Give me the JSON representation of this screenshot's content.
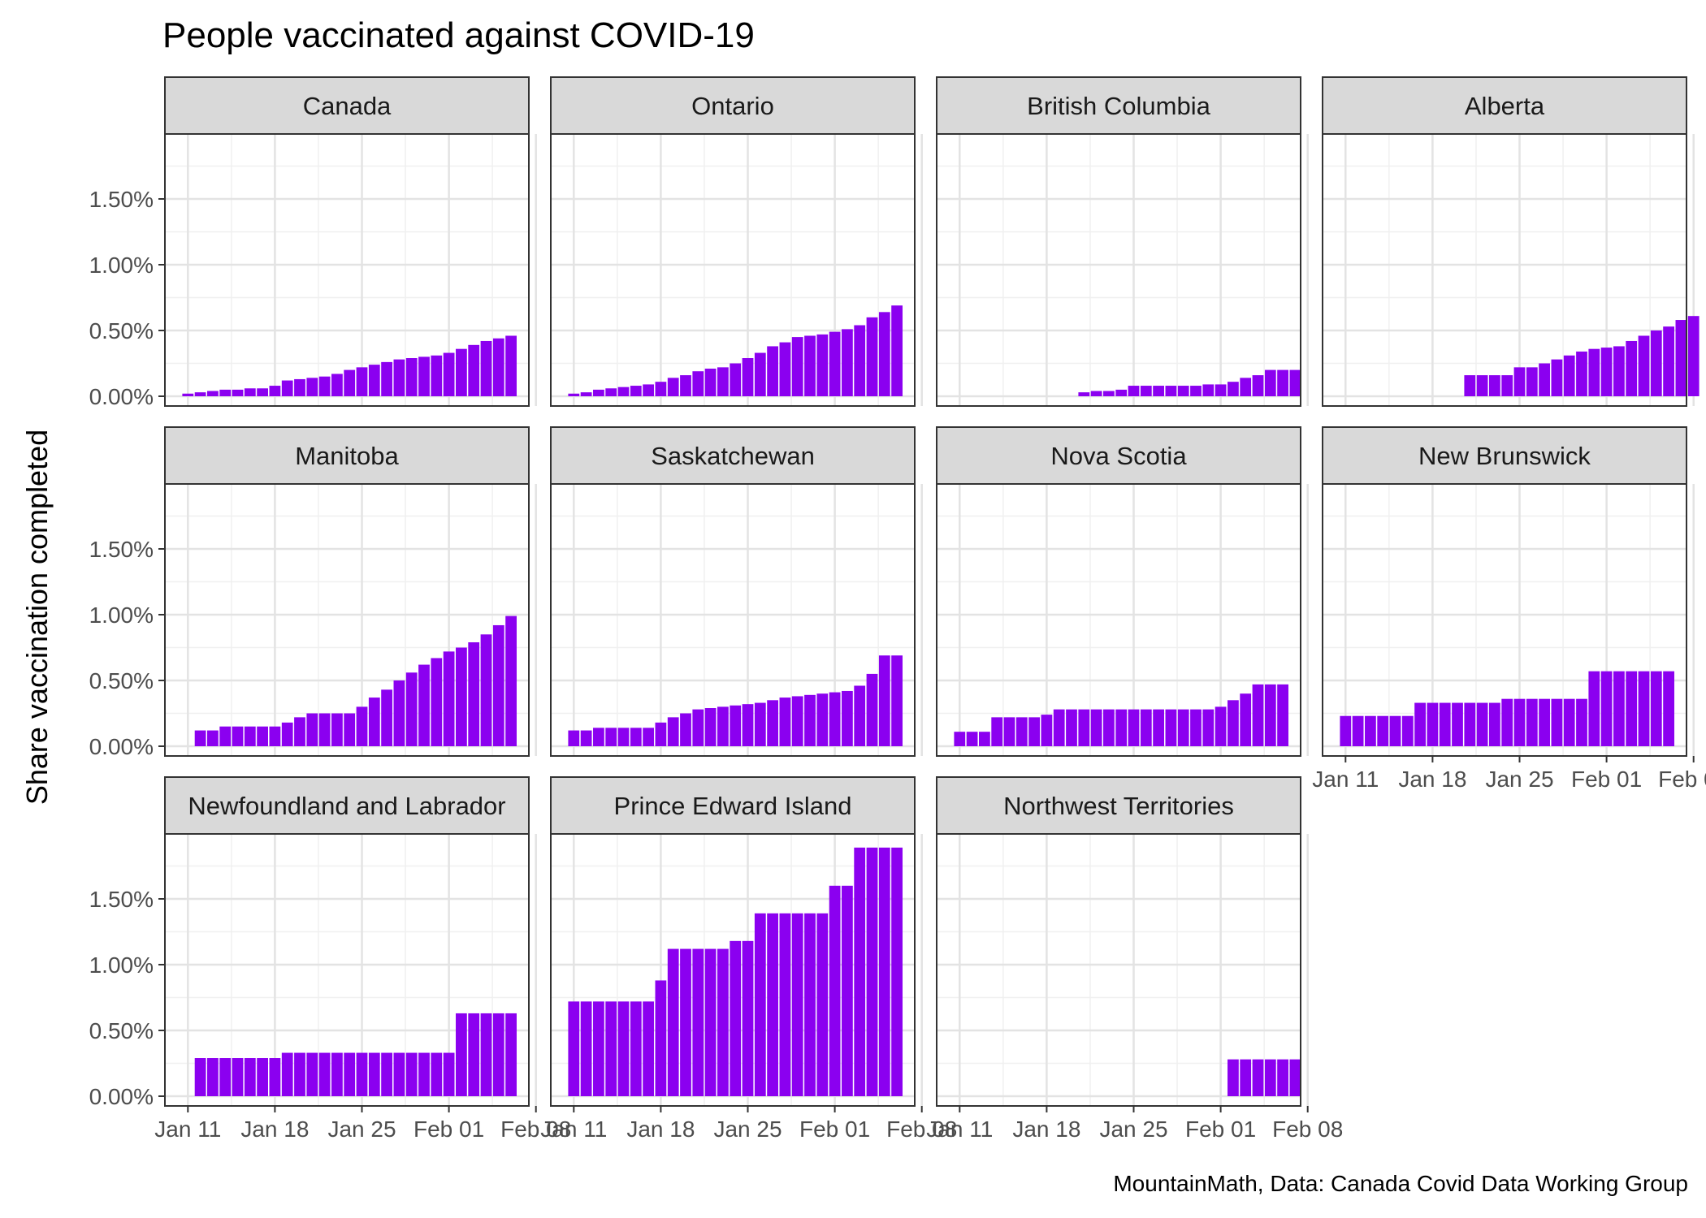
{
  "chart_data": {
    "type": "bar",
    "title": "People vaccinated against COVID-19",
    "ylabel": "Share vaccination completed",
    "xlabel": "",
    "caption": "MountainMath, Data: Canada Covid Data Working Group",
    "ylim": [
      0,
      0.02
    ],
    "yticks": [
      0,
      0.005,
      0.01,
      0.015
    ],
    "ytick_labels": [
      "0.00%",
      "0.50%",
      "1.00%",
      "1.50%"
    ],
    "x_start_date": "2021-01-10",
    "xticks": [
      "2021-01-11",
      "2021-01-18",
      "2021-01-25",
      "2021-02-01",
      "2021-02-08"
    ],
    "xtick_labels": [
      "Jan 11",
      "Jan 18",
      "Jan 25",
      "Feb 01",
      "Feb 08"
    ],
    "grid": true,
    "bar_color": "#8b00f0",
    "strip_color": "#d9d9d9",
    "panels": [
      {
        "name": "Canada",
        "start_date": "2021-01-11",
        "values": [
          0.0002,
          0.0003,
          0.0004,
          0.0005,
          0.0005,
          0.0006,
          0.0006,
          0.0008,
          0.0012,
          0.0013,
          0.0014,
          0.0015,
          0.0017,
          0.002,
          0.0022,
          0.0024,
          0.0026,
          0.0028,
          0.0029,
          0.003,
          0.0031,
          0.0033,
          0.0036,
          0.0039,
          0.0042,
          0.0044,
          0.0046
        ]
      },
      {
        "name": "Ontario",
        "start_date": "2021-01-11",
        "values": [
          0.0002,
          0.0003,
          0.0005,
          0.0006,
          0.0007,
          0.0008,
          0.0009,
          0.0011,
          0.0014,
          0.0016,
          0.0019,
          0.0021,
          0.0022,
          0.0025,
          0.0029,
          0.0033,
          0.0038,
          0.0041,
          0.0045,
          0.0046,
          0.0047,
          0.0049,
          0.0051,
          0.0054,
          0.006,
          0.0064,
          0.0069
        ]
      },
      {
        "name": "British Columbia",
        "start_date": "2021-01-21",
        "values": [
          0.0003,
          0.0004,
          0.0004,
          0.0005,
          0.0008,
          0.0008,
          0.0008,
          0.0008,
          0.0008,
          0.0008,
          0.0009,
          0.0009,
          0.0011,
          0.0014,
          0.0016,
          0.002,
          0.002,
          0.002
        ]
      },
      {
        "name": "Alberta",
        "start_date": "2021-01-21",
        "values": [
          0.0016,
          0.0016,
          0.0016,
          0.0016,
          0.0022,
          0.0022,
          0.0025,
          0.0028,
          0.0031,
          0.0034,
          0.0036,
          0.0037,
          0.0038,
          0.0042,
          0.0046,
          0.005,
          0.0053,
          0.0058,
          0.0061
        ]
      },
      {
        "name": "Manitoba",
        "start_date": "2021-01-12",
        "values": [
          0.0012,
          0.0012,
          0.0015,
          0.0015,
          0.0015,
          0.0015,
          0.0015,
          0.0018,
          0.0022,
          0.0025,
          0.0025,
          0.0025,
          0.0025,
          0.003,
          0.0037,
          0.0043,
          0.005,
          0.0056,
          0.0062,
          0.0067,
          0.0072,
          0.0075,
          0.0079,
          0.0085,
          0.0092,
          0.0099
        ]
      },
      {
        "name": "Saskatchewan",
        "start_date": "2021-01-11",
        "values": [
          0.0012,
          0.0012,
          0.0014,
          0.0014,
          0.0014,
          0.0014,
          0.0014,
          0.0018,
          0.0022,
          0.0025,
          0.0028,
          0.0029,
          0.003,
          0.0031,
          0.0032,
          0.0033,
          0.0035,
          0.0037,
          0.0038,
          0.0039,
          0.004,
          0.0041,
          0.0042,
          0.0046,
          0.0055,
          0.0069,
          0.0069
        ]
      },
      {
        "name": "Nova Scotia",
        "start_date": "2021-01-11",
        "values": [
          0.0011,
          0.0011,
          0.0011,
          0.0022,
          0.0022,
          0.0022,
          0.0022,
          0.0024,
          0.0028,
          0.0028,
          0.0028,
          0.0028,
          0.0028,
          0.0028,
          0.0028,
          0.0028,
          0.0028,
          0.0028,
          0.0028,
          0.0028,
          0.0028,
          0.003,
          0.0035,
          0.004,
          0.0047,
          0.0047,
          0.0047
        ]
      },
      {
        "name": "New Brunswick",
        "start_date": "2021-01-11",
        "values": [
          0.0023,
          0.0023,
          0.0023,
          0.0023,
          0.0023,
          0.0023,
          0.0033,
          0.0033,
          0.0033,
          0.0033,
          0.0033,
          0.0033,
          0.0033,
          0.0036,
          0.0036,
          0.0036,
          0.0036,
          0.0036,
          0.0036,
          0.0036,
          0.0057,
          0.0057,
          0.0057,
          0.0057,
          0.0057,
          0.0057,
          0.0057
        ]
      },
      {
        "name": "Newfoundland and Labrador",
        "start_date": "2021-01-12",
        "values": [
          0.0029,
          0.0029,
          0.0029,
          0.0029,
          0.0029,
          0.0029,
          0.0029,
          0.0033,
          0.0033,
          0.0033,
          0.0033,
          0.0033,
          0.0033,
          0.0033,
          0.0033,
          0.0033,
          0.0033,
          0.0033,
          0.0033,
          0.0033,
          0.0033,
          0.0063,
          0.0063,
          0.0063,
          0.0063,
          0.0063
        ]
      },
      {
        "name": "Prince Edward Island",
        "start_date": "2021-01-11",
        "values": [
          0.0072,
          0.0072,
          0.0072,
          0.0072,
          0.0072,
          0.0072,
          0.0072,
          0.0088,
          0.0112,
          0.0112,
          0.0112,
          0.0112,
          0.0112,
          0.0118,
          0.0118,
          0.0139,
          0.0139,
          0.0139,
          0.0139,
          0.0139,
          0.0139,
          0.016,
          0.016,
          0.0189,
          0.0189,
          0.0189,
          0.0189
        ]
      },
      {
        "name": "Northwest Territories",
        "start_date": "2021-02-02",
        "values": [
          0.0028,
          0.0028,
          0.0028,
          0.0028,
          0.0028,
          0.0028
        ]
      }
    ]
  }
}
